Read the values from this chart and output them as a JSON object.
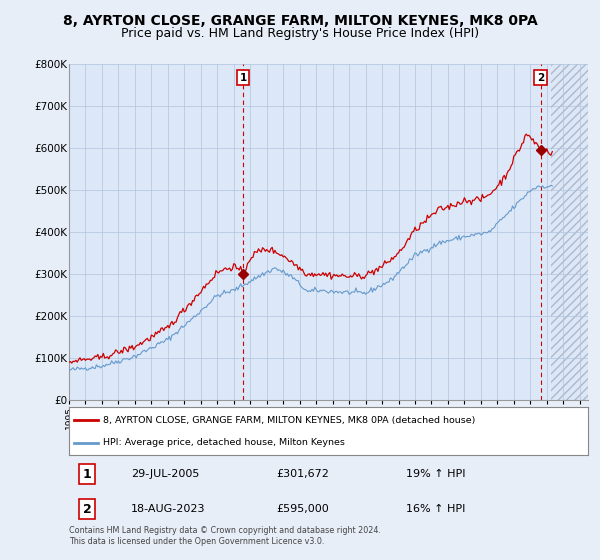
{
  "title": "8, AYRTON CLOSE, GRANGE FARM, MILTON KEYNES, MK8 0PA",
  "subtitle": "Price paid vs. HM Land Registry's House Price Index (HPI)",
  "title_fontsize": 10,
  "subtitle_fontsize": 9,
  "bg_color": "#e8eef8",
  "plot_bg_color": "#dce8f8",
  "grid_color": "#b0c4de",
  "red_color": "#cc0000",
  "blue_color": "#6699cc",
  "vline_color": "#cc0000",
  "marker_color": "#990000",
  "ylim": [
    0,
    800000
  ],
  "yticks": [
    0,
    100000,
    200000,
    300000,
    400000,
    500000,
    600000,
    700000,
    800000
  ],
  "ytick_labels": [
    "£0",
    "£100K",
    "£200K",
    "£300K",
    "£400K",
    "£500K",
    "£600K",
    "£700K",
    "£800K"
  ],
  "xlim": [
    1995,
    2026.5
  ],
  "xlabel_years": [
    1995,
    1996,
    1997,
    1998,
    1999,
    2000,
    2001,
    2002,
    2003,
    2004,
    2005,
    2006,
    2007,
    2008,
    2009,
    2010,
    2011,
    2012,
    2013,
    2014,
    2015,
    2016,
    2017,
    2018,
    2019,
    2020,
    2021,
    2022,
    2023,
    2024,
    2025,
    2026
  ],
  "hatch_start": 2024.25,
  "sale1_year": 2005.57,
  "sale1_price": 301672,
  "sale1_label": "1",
  "sale2_year": 2023.63,
  "sale2_price": 595000,
  "sale2_label": "2",
  "legend_line1": "8, AYRTON CLOSE, GRANGE FARM, MILTON KEYNES, MK8 0PA (detached house)",
  "legend_line2": "HPI: Average price, detached house, Milton Keynes",
  "annotation1_num": "1",
  "annotation1_date": "29-JUL-2005",
  "annotation1_price": "£301,672",
  "annotation1_hpi": "19% ↑ HPI",
  "annotation2_num": "2",
  "annotation2_date": "18-AUG-2023",
  "annotation2_price": "£595,000",
  "annotation2_hpi": "16% ↑ HPI",
  "footer": "Contains HM Land Registry data © Crown copyright and database right 2024.\nThis data is licensed under the Open Government Licence v3.0."
}
